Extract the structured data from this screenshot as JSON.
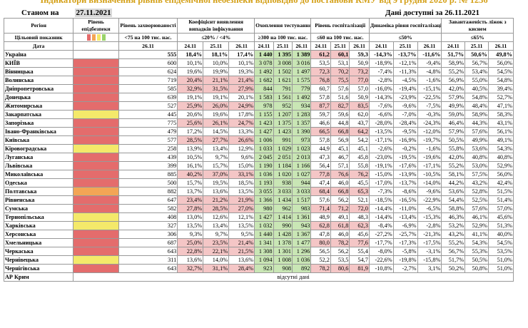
{
  "title": "Індикатори визначення рівнів епідемічної небезпеки відповідно до постанови КМУ від 9 грудня 2020 р. № 1236",
  "as_of_label": "Станом на",
  "as_of_date": "27.11.2021",
  "available_label": "Дані доступні за 26.11.2021",
  "headers": {
    "region": "Регіон",
    "target": "Цільовий показник",
    "date": "Дата",
    "level": "Рівень епідбезпеки",
    "morbidity": "Рівень захворюваності",
    "morbidity_sub": "<75 на 100 тис. нас.",
    "detection": "Коефіцієнт виявлення випадків інфікування",
    "detection_sub": "≤20% / <4%",
    "testing": "Охоплення тестуванням",
    "testing_sub": "≥300 на 100 тис. нас.",
    "hosp": "Рівень госпіталізації",
    "hosp_sub": "≤60 на 100 тис. нас.",
    "dyn": "Динаміка рівня госпіталізації",
    "dyn_sub": "≤50%",
    "oxy": "Завантаженість ліжок з киснем",
    "oxy_sub": "≤65%",
    "d2611": "26.11",
    "d2411": "24.11",
    "d2511": "25.11"
  },
  "ukraine": {
    "name": "Україна",
    "morb": "555",
    "det": [
      "18,4%",
      "18,1%",
      "17,4%"
    ],
    "test": [
      "1 440",
      "1 395",
      "1 389"
    ],
    "hosp": [
      "61,2",
      "60,1",
      "59,3"
    ],
    "dyn": [
      "-14,3%",
      "-13,7%",
      "-11,6%"
    ],
    "oxy": [
      "51,7%",
      "50,6%",
      "49,8%"
    ]
  },
  "rows": [
    {
      "name": "КИЇВ",
      "lvl": "red",
      "morb": "600",
      "det": [
        "10,1%",
        "10,0%",
        "10,1%"
      ],
      "detc": "",
      "test": [
        "3 078",
        "3 008",
        "3 016"
      ],
      "hosp": [
        "53,5",
        "53,1",
        "50,9"
      ],
      "hospc": "",
      "dyn": [
        "-18,9%",
        "-12,1%",
        "-9,4%"
      ],
      "oxy": [
        "58,9%",
        "56,7%",
        "56,0%"
      ]
    },
    {
      "name": "Вінницька",
      "lvl": "red",
      "morb": "624",
      "det": [
        "19,6%",
        "19,9%",
        "19,3%"
      ],
      "detc": "",
      "test": [
        "1 492",
        "1 502",
        "1 497"
      ],
      "hosp": [
        "72,3",
        "70,2",
        "73,2"
      ],
      "hospc": "pink",
      "dyn": [
        "-7,4%",
        "-11,3%",
        "-4,8%"
      ],
      "oxy": [
        "55,2%",
        "53,4%",
        "54,5%"
      ]
    },
    {
      "name": "Волинська",
      "lvl": "red",
      "morb": "719",
      "det": [
        "20,4%",
        "21,1%",
        "21,4%"
      ],
      "detc": "pink",
      "test": [
        "1 682",
        "1 621",
        "1 575"
      ],
      "hosp": [
        "76,8",
        "75,5",
        "77,0"
      ],
      "hospc": "pink",
      "dyn": [
        "-2,8%",
        "-4,5%",
        "-1,6%"
      ],
      "oxy": [
        "56,9%",
        "55,0%",
        "54,8%"
      ]
    },
    {
      "name": "Дніпропетровська",
      "lvl": "red",
      "morb": "585",
      "det": [
        "32,9%",
        "31,5%",
        "27,9%"
      ],
      "detc": "pink",
      "test": [
        "844",
        "791",
        "779"
      ],
      "hosp": [
        "60,7",
        "57,6",
        "57,0"
      ],
      "hospc": "",
      "dyn": [
        "-16,0%",
        "-19,4%",
        "-15,1%"
      ],
      "oxy": [
        "42,0%",
        "40,5%",
        "39,4%"
      ]
    },
    {
      "name": "Донецька",
      "lvl": "red",
      "morb": "639",
      "det": [
        "19,1%",
        "19,1%",
        "20,1%"
      ],
      "detc": "",
      "test": [
        "1 583",
        "1 561",
        "1 492"
      ],
      "hosp": [
        "57,8",
        "51,6",
        "50,9"
      ],
      "hospc": "",
      "dyn": [
        "-14,3%",
        "-23,9%",
        "-22,5%"
      ],
      "oxy": [
        "57,9%",
        "54,8%",
        "52,7%"
      ]
    },
    {
      "name": "Житомирська",
      "lvl": "red",
      "morb": "527",
      "det": [
        "25,9%",
        "26,0%",
        "24,9%"
      ],
      "detc": "pink",
      "test": [
        "978",
        "952",
        "934"
      ],
      "hosp": [
        "87,7",
        "82,7",
        "83,5"
      ],
      "hospc": "pink",
      "dyn": [
        "-7,6%",
        "-9,6%",
        "-7,5%"
      ],
      "oxy": [
        "49,9%",
        "48,4%",
        "47,1%"
      ]
    },
    {
      "name": "Закарпатська",
      "lvl": "yel",
      "morb": "445",
      "det": [
        "20,6%",
        "19,6%",
        "17,8%"
      ],
      "detc": "",
      "test": [
        "1 155",
        "1 207",
        "1 283"
      ],
      "hosp": [
        "59,7",
        "59,6",
        "62,0"
      ],
      "hospc": "",
      "dyn": [
        "-6,6%",
        "-7,0%",
        "-0,3%"
      ],
      "oxy": [
        "59,0%",
        "58,9%",
        "58,3%"
      ]
    },
    {
      "name": "Запорізька",
      "lvl": "red",
      "morb": "775",
      "det": [
        "25,6%",
        "26,1%",
        "24,7%"
      ],
      "detc": "pink",
      "test": [
        "1 423",
        "1 375",
        "1 357"
      ],
      "hosp": [
        "46,6",
        "44,8",
        "43,7"
      ],
      "hospc": "",
      "dyn": [
        "-28,0%",
        "-28,4%",
        "-24,3%"
      ],
      "oxy": [
        "46,4%",
        "44,3%",
        "43,1%"
      ]
    },
    {
      "name": "Івано-Франківська",
      "lvl": "red",
      "morb": "479",
      "det": [
        "17,2%",
        "14,5%",
        "13,3%"
      ],
      "detc": "",
      "test": [
        "1 427",
        "1 423",
        "1 390"
      ],
      "hosp": [
        "66,5",
        "66,8",
        "64,2"
      ],
      "hospc": "pink",
      "dyn": [
        "-13,5%",
        "-9,5%",
        "-12,0%"
      ],
      "oxy": [
        "57,9%",
        "57,6%",
        "56,1%"
      ]
    },
    {
      "name": "Київська",
      "lvl": "red",
      "morb": "577",
      "det": [
        "28,5%",
        "27,7%",
        "26,6%"
      ],
      "detc": "pink",
      "test": [
        "1 006",
        "991",
        "973"
      ],
      "hosp": [
        "57,8",
        "56,9",
        "54,2"
      ],
      "hospc": "",
      "dyn": [
        "-17,1%",
        "-16,9%",
        "-19,7%"
      ],
      "oxy": [
        "50,5%",
        "49,9%",
        "49,1%"
      ]
    },
    {
      "name": "Кіровоградська",
      "lvl": "yel",
      "morb": "258",
      "det": [
        "13,9%",
        "13,4%",
        "12,9%"
      ],
      "detc": "",
      "test": [
        "1 033",
        "1 029",
        "1 023"
      ],
      "hosp": [
        "44,9",
        "45,1",
        "45,1"
      ],
      "hospc": "",
      "dyn": [
        "-2,6%",
        "-0,2%",
        "-1,6%"
      ],
      "oxy": [
        "55,8%",
        "53,6%",
        "54,3%"
      ]
    },
    {
      "name": "Луганська",
      "lvl": "red",
      "morb": "439",
      "det": [
        "10,5%",
        "9,7%",
        "9,6%"
      ],
      "detc": "",
      "test": [
        "2 045",
        "2 051",
        "2 013"
      ],
      "hosp": [
        "47,3",
        "46,7",
        "45,8"
      ],
      "hospc": "",
      "dyn": [
        "-23,0%",
        "-19,5%",
        "-19,6%"
      ],
      "oxy": [
        "42,0%",
        "40,8%",
        "40,8%"
      ]
    },
    {
      "name": "Львівська",
      "lvl": "red",
      "morb": "399",
      "det": [
        "16,1%",
        "15,7%",
        "15,0%"
      ],
      "detc": "",
      "test": [
        "1 190",
        "1 184",
        "1 166"
      ],
      "hosp": [
        "56,4",
        "57,1",
        "55,8"
      ],
      "hospc": "",
      "dyn": [
        "-19,1%",
        "-17,6%",
        "-17,1%"
      ],
      "oxy": [
        "55,2%",
        "53,0%",
        "52,9%"
      ]
    },
    {
      "name": "Миколаївська",
      "lvl": "red",
      "morb": "885",
      "det": [
        "40,2%",
        "37,0%",
        "33,1%"
      ],
      "detc": "pink",
      "test": [
        "1 036",
        "1 020",
        "1 027"
      ],
      "hosp": [
        "77,8",
        "76,6",
        "76,2"
      ],
      "hospc": "pink",
      "dyn": [
        "-15,0%",
        "-13,9%",
        "-10,5%"
      ],
      "oxy": [
        "58,1%",
        "57,5%",
        "56,0%"
      ]
    },
    {
      "name": "Одеська",
      "lvl": "red",
      "morb": "500",
      "det": [
        "15,7%",
        "19,5%",
        "18,5%"
      ],
      "detc": "",
      "test": [
        "1 193",
        "938",
        "944"
      ],
      "hosp": [
        "47,4",
        "46,0",
        "45,5"
      ],
      "hospc": "",
      "dyn": [
        "-17,0%",
        "-13,7%",
        "-14,0%"
      ],
      "oxy": [
        "44,2%",
        "43,2%",
        "42,4%"
      ]
    },
    {
      "name": "Полтавська",
      "lvl": "org",
      "morb": "882",
      "det": [
        "13,7%",
        "13,6%",
        "13,5%"
      ],
      "detc": "",
      "test": [
        "3 055",
        "3 033",
        "3 033"
      ],
      "hosp": [
        "68,4",
        "66,8",
        "65,3"
      ],
      "hospc": "pink",
      "dyn": [
        "-7,3%",
        "-8,6%",
        "-9,6%"
      ],
      "oxy": [
        "53,6%",
        "52,8%",
        "51,5%"
      ]
    },
    {
      "name": "Рівненська",
      "lvl": "red",
      "morb": "647",
      "det": [
        "23,4%",
        "21,2%",
        "21,9%"
      ],
      "detc": "pink",
      "test": [
        "1 366",
        "1 434",
        "1 517"
      ],
      "hosp": [
        "57,6",
        "56,2",
        "52,1"
      ],
      "hospc": "",
      "dyn": [
        "-18,5%",
        "-16,5%",
        "-22,9%"
      ],
      "oxy": [
        "54,4%",
        "52,5%",
        "51,4%"
      ]
    },
    {
      "name": "Сумська",
      "lvl": "red",
      "morb": "582",
      "det": [
        "27,8%",
        "28,5%",
        "27,0%"
      ],
      "detc": "pink",
      "test": [
        "980",
        "962",
        "983"
      ],
      "hosp": [
        "71,4",
        "71,2",
        "72,0"
      ],
      "hospc": "pink",
      "dyn": [
        "-14,4%",
        "-11,0%",
        "-6,5%"
      ],
      "oxy": [
        "58,8%",
        "57,6%",
        "57,0%"
      ]
    },
    {
      "name": "Тернопільська",
      "lvl": "yel",
      "morb": "408",
      "det": [
        "13,0%",
        "12,6%",
        "12,1%"
      ],
      "detc": "",
      "test": [
        "1 427",
        "1 414",
        "1 361"
      ],
      "hosp": [
        "48,9",
        "49,1",
        "48,3"
      ],
      "hospc": "",
      "dyn": [
        "-14,4%",
        "-13,4%",
        "-15,3%"
      ],
      "oxy": [
        "46,3%",
        "46,1%",
        "45,6%"
      ]
    },
    {
      "name": "Харківська",
      "lvl": "yel",
      "morb": "327",
      "det": [
        "13,5%",
        "13,4%",
        "13,5%"
      ],
      "detc": "",
      "test": [
        "1 032",
        "990",
        "943"
      ],
      "hosp": [
        "62,8",
        "61,8",
        "62,3"
      ],
      "hospc": "pink",
      "dyn": [
        "-8,4%",
        "-6,9%",
        "-2,8%"
      ],
      "oxy": [
        "53,2%",
        "52,9%",
        "51,3%"
      ]
    },
    {
      "name": "Херсонська",
      "lvl": "red",
      "morb": "306",
      "det": [
        "9,3%",
        "9,7%",
        "9,5%"
      ],
      "detc": "",
      "test": [
        "1 440",
        "1 428",
        "1 367"
      ],
      "hosp": [
        "47,8",
        "46,0",
        "45,6"
      ],
      "hospc": "",
      "dyn": [
        "-27,2%",
        "-25,7%",
        "-21,3%"
      ],
      "oxy": [
        "43,2%",
        "41,1%",
        "40,0%"
      ]
    },
    {
      "name": "Хмельницька",
      "lvl": "red",
      "morb": "687",
      "det": [
        "25,0%",
        "23,5%",
        "21,4%"
      ],
      "detc": "pink",
      "test": [
        "1 341",
        "1 378",
        "1 477"
      ],
      "hosp": [
        "80,0",
        "78,2",
        "77,6"
      ],
      "hospc": "pink",
      "dyn": [
        "-17,7%",
        "-17,3%",
        "-17,5%"
      ],
      "oxy": [
        "55,2%",
        "54,3%",
        "54,5%"
      ]
    },
    {
      "name": "Черкаська",
      "lvl": "red",
      "morb": "643",
      "det": [
        "22,8%",
        "22,1%",
        "21,5%"
      ],
      "detc": "pink",
      "test": [
        "1 308",
        "1 301",
        "1 296"
      ],
      "hosp": [
        "56,5",
        "56,2",
        "55,4"
      ],
      "hospc": "",
      "dyn": [
        "-8,0%",
        "-5,8%",
        "-3,1%"
      ],
      "oxy": [
        "56,7%",
        "55,3%",
        "53,5%"
      ]
    },
    {
      "name": "Чернівецька",
      "lvl": "yel",
      "morb": "311",
      "det": [
        "13,6%",
        "14,0%",
        "13,6%"
      ],
      "detc": "",
      "test": [
        "1 094",
        "1 008",
        "1 036"
      ],
      "hosp": [
        "52,2",
        "53,5",
        "54,7"
      ],
      "hospc": "",
      "dyn": [
        "-22,6%",
        "-19,8%",
        "-15,8%"
      ],
      "oxy": [
        "51,7%",
        "50,5%",
        "51,0%"
      ]
    },
    {
      "name": "Чернігівська",
      "lvl": "red",
      "morb": "643",
      "det": [
        "32,7%",
        "31,1%",
        "28,4%"
      ],
      "detc": "pink",
      "test": [
        "923",
        "908",
        "892"
      ],
      "hosp": [
        "78,2",
        "80,6",
        "81,9"
      ],
      "hospc": "pink",
      "dyn": [
        "-10,8%",
        "-2,7%",
        "3,1%"
      ],
      "oxy": [
        "50,2%",
        "50,8%",
        "51,0%"
      ]
    }
  ],
  "crimea": {
    "name": "АР Крим",
    "note": "відсутні дані"
  },
  "colors": {
    "red": "#e46c6c",
    "yellow": "#f4e96a",
    "orange": "#f3a555",
    "green": "#c9e6b5",
    "pink": "#f4c6c6",
    "title": "#d4a017"
  }
}
